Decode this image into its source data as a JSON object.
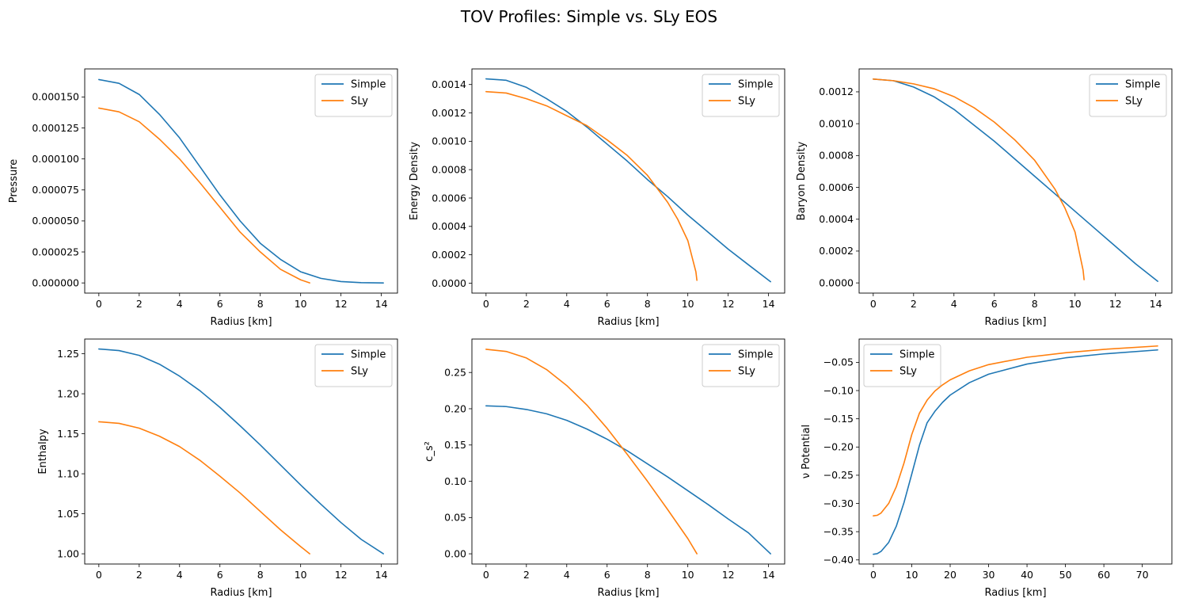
{
  "figure": {
    "title": "TOV Profiles: Simple vs. SLy EOS"
  },
  "colors": {
    "Simple": "#1f77b4",
    "SLy": "#ff7f0e"
  },
  "chart_data": [
    {
      "type": "line",
      "xlabel": "Radius [km]",
      "ylabel": "Pressure",
      "xlim": [
        -0.7,
        14.8
      ],
      "ylim": [
        -8.2e-06,
        0.0001726
      ],
      "xticks": [
        0,
        2,
        4,
        6,
        8,
        10,
        12,
        14
      ],
      "xtick_labels": [
        "0",
        "2",
        "4",
        "6",
        "8",
        "10",
        "12",
        "14"
      ],
      "yticks": [
        0,
        2.5e-05,
        5e-05,
        7.5e-05,
        0.0001,
        0.000125,
        0.00015
      ],
      "ytick_labels": [
        "0.000000",
        "0.000025",
        "0.000050",
        "0.000075",
        "0.000100",
        "0.000125",
        "0.000150"
      ],
      "legend": "top-right",
      "series": [
        {
          "name": "Simple",
          "x": [
            0,
            1,
            2,
            3,
            4,
            5,
            6,
            7,
            8,
            9,
            10,
            11,
            12,
            13,
            14.1
          ],
          "y": [
            0.000164,
            0.000161,
            0.000152,
            0.000136,
            0.000117,
            9.4e-05,
            7.1e-05,
            5e-05,
            3.2e-05,
            1.9e-05,
            9e-06,
            3.7e-06,
            1.1e-06,
            2e-07,
            0
          ]
        },
        {
          "name": "SLy",
          "x": [
            0,
            1,
            2,
            3,
            4,
            5,
            6,
            7,
            8,
            9,
            10,
            10.45
          ],
          "y": [
            0.000141,
            0.000138,
            0.00013,
            0.000116,
            0.0001,
            8.1e-05,
            6.1e-05,
            4.1e-05,
            2.5e-05,
            1.1e-05,
            2.5e-06,
            0
          ]
        }
      ]
    },
    {
      "type": "line",
      "xlabel": "Radius [km]",
      "ylabel": "Energy Density",
      "xlim": [
        -0.7,
        14.8
      ],
      "ylim": [
        -7e-05,
        0.00151
      ],
      "xticks": [
        0,
        2,
        4,
        6,
        8,
        10,
        12,
        14
      ],
      "xtick_labels": [
        "0",
        "2",
        "4",
        "6",
        "8",
        "10",
        "12",
        "14"
      ],
      "yticks": [
        0,
        0.0002,
        0.0004,
        0.0006,
        0.0008,
        0.001,
        0.0012,
        0.0014
      ],
      "ytick_labels": [
        "0.0000",
        "0.0002",
        "0.0004",
        "0.0006",
        "0.0008",
        "0.0010",
        "0.0012",
        "0.0014"
      ],
      "legend": "top-right",
      "series": [
        {
          "name": "Simple",
          "x": [
            0,
            1,
            2,
            3,
            4,
            5,
            6,
            7,
            8,
            9,
            10,
            11,
            12,
            13,
            14.1
          ],
          "y": [
            0.00144,
            0.00143,
            0.00138,
            0.0013,
            0.00121,
            0.0011,
            0.00098,
            0.00086,
            0.00073,
            0.00061,
            0.00048,
            0.00036,
            0.00024,
            0.00013,
            1e-05
          ]
        },
        {
          "name": "SLy",
          "x": [
            0,
            1,
            2,
            3,
            4,
            5,
            6,
            7,
            8,
            9,
            9.5,
            10,
            10.2,
            10.4,
            10.45
          ],
          "y": [
            0.00135,
            0.00134,
            0.0013,
            0.00125,
            0.00118,
            0.00111,
            0.00101,
            0.0009,
            0.00076,
            0.00057,
            0.00045,
            0.0003,
            0.00019,
            8e-05,
            2e-05
          ]
        }
      ]
    },
    {
      "type": "line",
      "xlabel": "Radius [km]",
      "ylabel": "Baryon Density",
      "xlim": [
        -0.7,
        14.8
      ],
      "ylim": [
        -6.4e-05,
        0.001344
      ],
      "xticks": [
        0,
        2,
        4,
        6,
        8,
        10,
        12,
        14
      ],
      "xtick_labels": [
        "0",
        "2",
        "4",
        "6",
        "8",
        "10",
        "12",
        "14"
      ],
      "yticks": [
        0,
        0.0002,
        0.0004,
        0.0006,
        0.0008,
        0.001,
        0.0012
      ],
      "ytick_labels": [
        "0.0000",
        "0.0002",
        "0.0004",
        "0.0006",
        "0.0008",
        "0.0010",
        "0.0012"
      ],
      "legend": "top-right",
      "series": [
        {
          "name": "Simple",
          "x": [
            0,
            1,
            2,
            3,
            4,
            5,
            6,
            7,
            8,
            9,
            10,
            11,
            12,
            13,
            14.1
          ],
          "y": [
            0.00128,
            0.00127,
            0.00123,
            0.00117,
            0.00109,
            0.00099,
            0.00089,
            0.00078,
            0.00067,
            0.00056,
            0.00045,
            0.00034,
            0.00023,
            0.00012,
            1e-05
          ]
        },
        {
          "name": "SLy",
          "x": [
            0,
            1,
            2,
            3,
            4,
            5,
            6,
            7,
            8,
            9,
            9.5,
            10,
            10.2,
            10.4,
            10.45
          ],
          "y": [
            0.00128,
            0.00127,
            0.00125,
            0.00122,
            0.00117,
            0.0011,
            0.00101,
            0.0009,
            0.00077,
            0.00059,
            0.00047,
            0.00032,
            0.0002,
            8e-05,
            2e-05
          ]
        }
      ]
    },
    {
      "type": "line",
      "xlabel": "Radius [km]",
      "ylabel": "Enthalpy",
      "xlim": [
        -0.7,
        14.8
      ],
      "ylim": [
        0.9872,
        1.2684
      ],
      "xticks": [
        0,
        2,
        4,
        6,
        8,
        10,
        12,
        14
      ],
      "xtick_labels": [
        "0",
        "2",
        "4",
        "6",
        "8",
        "10",
        "12",
        "14"
      ],
      "yticks": [
        1.0,
        1.05,
        1.1,
        1.15,
        1.2,
        1.25
      ],
      "ytick_labels": [
        "1.00",
        "1.05",
        "1.10",
        "1.15",
        "1.20",
        "1.25"
      ],
      "legend": "top-right",
      "series": [
        {
          "name": "Simple",
          "x": [
            0,
            1,
            2,
            3,
            4,
            5,
            6,
            7,
            8,
            9,
            10,
            11,
            12,
            13,
            14.1
          ],
          "y": [
            1.256,
            1.254,
            1.248,
            1.237,
            1.222,
            1.204,
            1.183,
            1.16,
            1.136,
            1.111,
            1.086,
            1.062,
            1.039,
            1.018,
            1.0
          ]
        },
        {
          "name": "SLy",
          "x": [
            0,
            1,
            2,
            3,
            4,
            5,
            6,
            7,
            8,
            9,
            10,
            10.45
          ],
          "y": [
            1.165,
            1.163,
            1.157,
            1.147,
            1.134,
            1.117,
            1.097,
            1.076,
            1.053,
            1.03,
            1.009,
            1.0
          ]
        }
      ]
    },
    {
      "type": "line",
      "xlabel": "Radius [km]",
      "ylabel": "c_s²",
      "xlim": [
        -0.7,
        14.8
      ],
      "ylim": [
        -0.0141,
        0.2961
      ],
      "xticks": [
        0,
        2,
        4,
        6,
        8,
        10,
        12,
        14
      ],
      "xtick_labels": [
        "0",
        "2",
        "4",
        "6",
        "8",
        "10",
        "12",
        "14"
      ],
      "yticks": [
        0,
        0.05,
        0.1,
        0.15,
        0.2,
        0.25
      ],
      "ytick_labels": [
        "0.00",
        "0.05",
        "0.10",
        "0.15",
        "0.20",
        "0.25"
      ],
      "legend": "top-right",
      "series": [
        {
          "name": "Simple",
          "x": [
            0,
            1,
            2,
            3,
            4,
            5,
            6,
            7,
            8,
            9,
            10,
            11,
            12,
            13,
            14.1
          ],
          "y": [
            0.204,
            0.203,
            0.199,
            0.193,
            0.184,
            0.172,
            0.158,
            0.142,
            0.124,
            0.106,
            0.087,
            0.068,
            0.048,
            0.029,
            0.0
          ]
        },
        {
          "name": "SLy",
          "x": [
            0,
            1,
            2,
            3,
            4,
            5,
            6,
            7,
            8,
            9,
            10,
            10.45
          ],
          "y": [
            0.282,
            0.279,
            0.27,
            0.254,
            0.232,
            0.205,
            0.173,
            0.137,
            0.1,
            0.061,
            0.021,
            0.0
          ]
        }
      ]
    },
    {
      "type": "line",
      "xlabel": "Radius [km]",
      "ylabel": "ν Potential",
      "xlim": [
        -3.7,
        77.7
      ],
      "ylim": [
        -0.4073,
        -0.0087
      ],
      "xticks": [
        0,
        10,
        20,
        30,
        40,
        50,
        60,
        70
      ],
      "xtick_labels": [
        "0",
        "10",
        "20",
        "30",
        "40",
        "50",
        "60",
        "70"
      ],
      "yticks": [
        -0.4,
        -0.35,
        -0.3,
        -0.25,
        -0.2,
        -0.15,
        -0.1,
        -0.05
      ],
      "ytick_labels": [
        "−0.40",
        "−0.35",
        "−0.30",
        "−0.25",
        "−0.20",
        "−0.15",
        "−0.10",
        "−0.05"
      ],
      "legend": "top-left",
      "series": [
        {
          "name": "Simple",
          "x": [
            0,
            1,
            2,
            4,
            6,
            8,
            10,
            12,
            14,
            16,
            18,
            20,
            25,
            30,
            40,
            50,
            60,
            74
          ],
          "y": [
            -0.39,
            -0.389,
            -0.385,
            -0.369,
            -0.34,
            -0.298,
            -0.248,
            -0.197,
            -0.157,
            -0.137,
            -0.121,
            -0.108,
            -0.086,
            -0.071,
            -0.053,
            -0.042,
            -0.035,
            -0.028
          ]
        },
        {
          "name": "SLy",
          "x": [
            0,
            1,
            2,
            4,
            6,
            8,
            10,
            12,
            14,
            16,
            18,
            20,
            25,
            30,
            40,
            50,
            60,
            74
          ],
          "y": [
            -0.322,
            -0.321,
            -0.317,
            -0.3,
            -0.27,
            -0.228,
            -0.178,
            -0.14,
            -0.117,
            -0.101,
            -0.09,
            -0.081,
            -0.065,
            -0.054,
            -0.041,
            -0.033,
            -0.027,
            -0.021
          ]
        }
      ]
    }
  ]
}
